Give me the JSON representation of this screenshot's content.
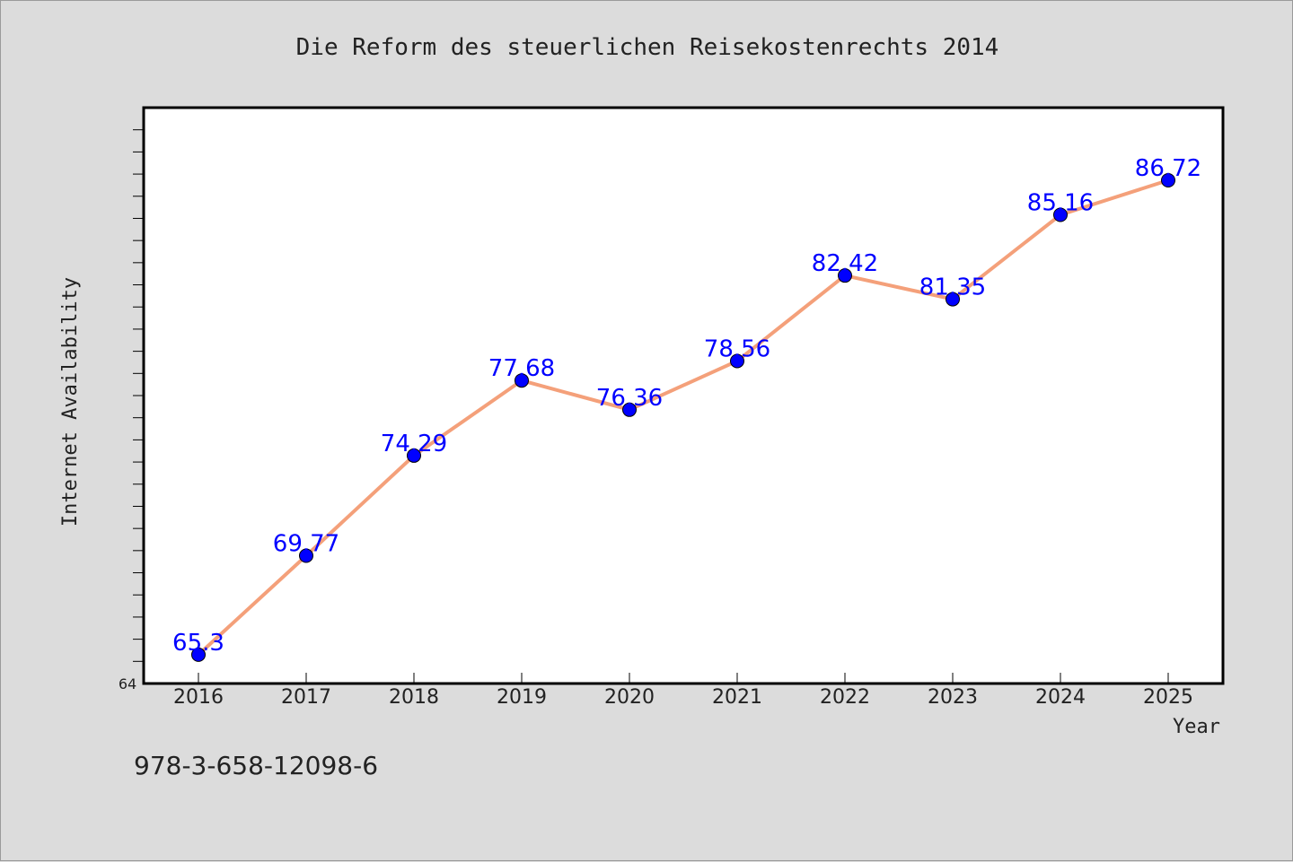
{
  "chart_data": {
    "type": "line",
    "title": "Die Reform des steuerlichen Reisekostenrechts 2014",
    "xlabel": "Year",
    "ylabel": "Internet Availability",
    "x": [
      "2016",
      "2017",
      "2018",
      "2019",
      "2020",
      "2021",
      "2022",
      "2023",
      "2024",
      "2025"
    ],
    "series": [
      {
        "values": [
          65.3,
          69.77,
          74.29,
          77.68,
          76.36,
          78.56,
          82.42,
          81.35,
          85.16,
          86.72
        ],
        "labels": [
          "65.3",
          "69.77",
          "74.29",
          "77.68",
          "76.36",
          "78.56",
          "82.42",
          "81.35",
          "85.16",
          "86.72"
        ]
      }
    ],
    "ylim": [
      64,
      90
    ],
    "ytick_labels": [
      "64"
    ],
    "grid": false,
    "colors": {
      "line": "#f4a07a",
      "marker": "#0000ff",
      "data_label": "#0000ff",
      "background": "#dcdcdc",
      "plot_area": "#ffffff"
    }
  },
  "footer": {
    "isbn": "978-3-658-12098-6"
  }
}
